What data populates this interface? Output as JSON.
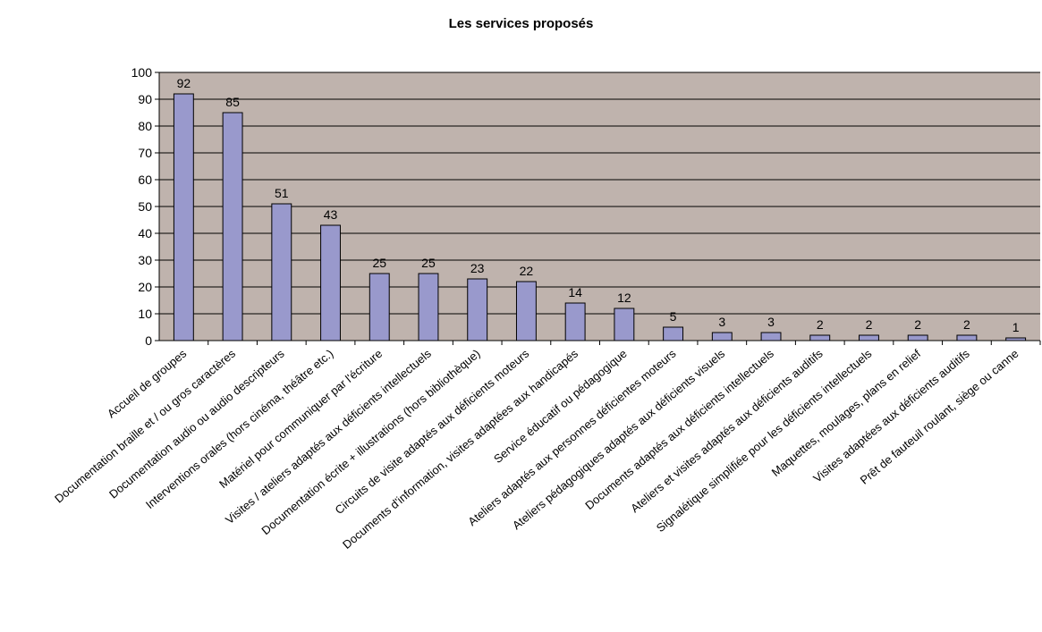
{
  "chart_data": {
    "type": "bar",
    "title": "Les services proposés",
    "xlabel": "",
    "ylabel": "",
    "ylim": [
      0,
      100
    ],
    "yticks": [
      0,
      10,
      20,
      30,
      40,
      50,
      60,
      70,
      80,
      90,
      100
    ],
    "grid": true,
    "colors": {
      "plot_bg": "#bfb3ad",
      "bar_fill": "#9999cc",
      "bar_stroke": "#000000",
      "grid": "#000000"
    },
    "categories": [
      "Accueil de groupes",
      "Documentation braille et / ou gros caractères",
      "Documentation audio ou audio descripteurs",
      "Interventions orales (hors cinéma, théâtre etc.)",
      "Matériel pour communiquer par l'écriture",
      "Visites / ateliers adaptés aux déficients intellectuels",
      "Documentation écrite + illustrations (hors bibliothèque)",
      "Circuits de visite adaptés aux déficients moteurs",
      "Documents d'information, visites adaptées aux handicapés",
      "Service éducatif ou pédagogique",
      "Ateliers adaptés aux personnes déficientes moteurs",
      "Ateliers pédagogiques adaptés aux déficients visuels",
      "Documents adaptés aux déficients intellectuels",
      "Ateliers et visites adaptés aux déficients auditifs",
      "Signalétique simplifiée pour les déficients intellectuels",
      "Maquettes, moulages, plans en relief",
      "Visites adaptées aux déficients auditifs",
      "Prêt de fauteuil roulant, siège ou canne"
    ],
    "values": [
      92,
      85,
      51,
      43,
      25,
      25,
      23,
      22,
      14,
      12,
      5,
      3,
      3,
      2,
      2,
      2,
      2,
      1
    ]
  }
}
